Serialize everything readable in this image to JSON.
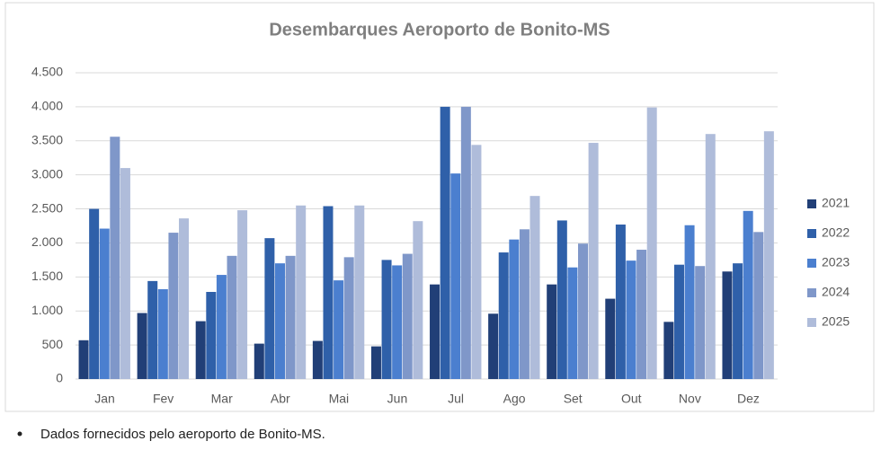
{
  "chart_data": {
    "type": "bar",
    "title": "Desembarques Aeroporto de Bonito-MS",
    "categories": [
      "Jan",
      "Fev",
      "Mar",
      "Abr",
      "Mai",
      "Jun",
      "Jul",
      "Ago",
      "Set",
      "Out",
      "Nov",
      "Dez"
    ],
    "series": [
      {
        "name": "2021",
        "color": "#213f77",
        "values": [
          570,
          970,
          850,
          520,
          560,
          480,
          1390,
          960,
          1390,
          1180,
          840,
          1580
        ]
      },
      {
        "name": "2022",
        "color": "#2f60a9",
        "values": [
          2500,
          1440,
          1280,
          2070,
          2540,
          1750,
          4000,
          1860,
          2330,
          2270,
          1680,
          1700
        ]
      },
      {
        "name": "2023",
        "color": "#4b7fcf",
        "values": [
          2210,
          1320,
          1530,
          1700,
          1450,
          1670,
          3020,
          2050,
          1640,
          1740,
          2260,
          2470
        ]
      },
      {
        "name": "2024",
        "color": "#7f97c9",
        "values": [
          3560,
          2150,
          1810,
          1810,
          1790,
          1840,
          4000,
          2200,
          1990,
          1900,
          1660,
          2160
        ]
      },
      {
        "name": "2025",
        "color": "#afbcda",
        "values": [
          3100,
          2360,
          2480,
          2550,
          2550,
          2320,
          3440,
          2690,
          3470,
          3990,
          3600,
          3640
        ]
      }
    ],
    "ylim": [
      0,
      4500
    ],
    "yticks": [
      0,
      500,
      {
        "value": 1000,
        "label": "1.000"
      },
      {
        "value": 1500,
        "label": "1.500"
      },
      {
        "value": 2000,
        "label": "2.000"
      },
      {
        "value": 2500,
        "label": "2.500"
      },
      {
        "value": 3000,
        "label": "3.000"
      },
      {
        "value": 3500,
        "label": "3.500"
      },
      {
        "value": 4000,
        "label": "4.000"
      },
      {
        "value": 4500,
        "label": "4.500"
      }
    ],
    "grid": true,
    "legend": "right"
  },
  "notes": [
    "Dados fornecidos pelo aeroporto de Bonito-MS."
  ]
}
